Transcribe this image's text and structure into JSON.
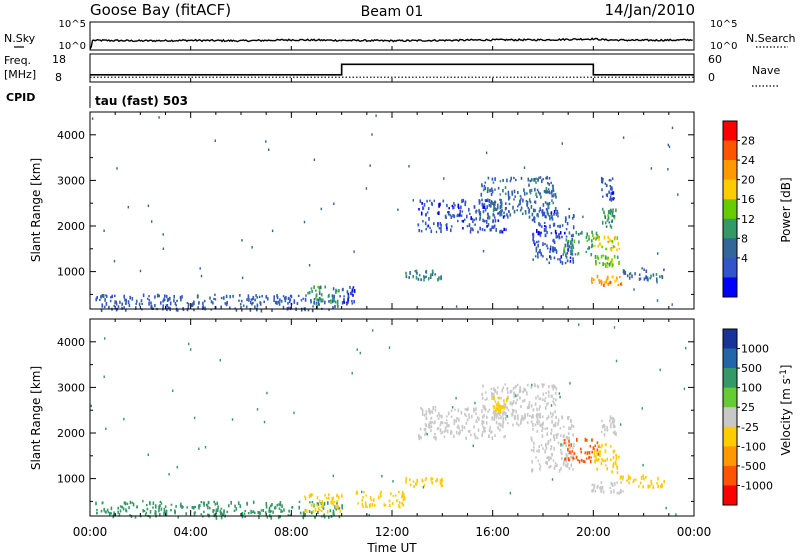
{
  "header": {
    "station": "Goose Bay (fitACF)",
    "beam": "Beam 01",
    "date": "14/Jan/2010"
  },
  "noise_panel": {
    "left_label": "N.Sky",
    "right_label": "N.Search",
    "left_ticks": [
      "10^5",
      "10^0"
    ],
    "right_ticks": [
      "10^5",
      "10^0"
    ]
  },
  "freq_panel": {
    "left_label_1": "Freq.",
    "left_label_2": "[MHz]",
    "left_ticks": [
      "18",
      "8"
    ],
    "right_label": "Nave",
    "right_ticks": [
      "60",
      "0"
    ]
  },
  "cpid_panel": {
    "label": "CPID",
    "mode_text": "tau (fast) 503"
  },
  "x_axis": {
    "label": "Time UT",
    "ticks": [
      "00:00",
      "04:00",
      "08:00",
      "12:00",
      "16:00",
      "20:00",
      "00:00"
    ]
  },
  "power_colorbar": {
    "label": "Power [dB]",
    "ticks": [
      "28",
      "24",
      "20",
      "16",
      "12",
      "8",
      "4"
    ],
    "colors": [
      "#ff0000",
      "#ff5500",
      "#ff9900",
      "#ffcc00",
      "#66cc00",
      "#339966",
      "#336699",
      "#3355cc",
      "#0000ff"
    ]
  },
  "velocity_colorbar": {
    "label": "Velocity [m s^-1]",
    "ticks": [
      "1000",
      "500",
      "100",
      "25",
      "-25",
      "-100",
      "-500",
      "-1000"
    ],
    "colors": [
      "#1a3399",
      "#2266aa",
      "#339966",
      "#66cc33",
      "#c8c8c8",
      "#ffcc00",
      "#ff9900",
      "#ff5500",
      "#ff0000"
    ]
  },
  "chart_data": [
    {
      "type": "line",
      "title": "N.Sky / N.Search noise",
      "x_range_hours": [
        0,
        24
      ],
      "series": [
        {
          "name": "N.Sky",
          "x": [
            0,
            0.05,
            0.1,
            2,
            4,
            6,
            8,
            10,
            12,
            14,
            16,
            18,
            20,
            20.5,
            22,
            24
          ],
          "y_log10": [
            0.0,
            0.5,
            1.8,
            1.7,
            1.8,
            1.7,
            1.9,
            1.8,
            1.7,
            1.8,
            1.9,
            1.9,
            2.1,
            1.9,
            1.8,
            1.9
          ]
        }
      ]
    },
    {
      "type": "line",
      "title": "Frequency and Nave",
      "x_range_hours": [
        0,
        24
      ],
      "ylim_freq_mhz": [
        8,
        18
      ],
      "series": [
        {
          "name": "Freq.",
          "x": [
            0,
            10,
            10,
            20,
            20,
            24
          ],
          "y": [
            10,
            10,
            15,
            15,
            10,
            10
          ]
        },
        {
          "name": "Nave",
          "x": [
            0,
            24
          ],
          "y": [
            7,
            7
          ]
        }
      ]
    },
    {
      "type": "heatmap",
      "title": "Power [dB]",
      "xlabel": "Time UT",
      "ylabel": "Slant Range [km]",
      "xlim_hours": [
        0,
        24
      ],
      "ylim_km": [
        180,
        4500
      ],
      "yticks": [
        1000,
        2000,
        3000,
        4000
      ],
      "regions": [
        {
          "t": [
            0.2,
            10.0
          ],
          "r": [
            180,
            520
          ],
          "value": 8
        },
        {
          "t": [
            8.6,
            10.0
          ],
          "r": [
            300,
            700
          ],
          "value": 14
        },
        {
          "t": [
            10.0,
            10.5
          ],
          "r": [
            300,
            700
          ],
          "value": 6
        },
        {
          "t": [
            12.5,
            14.0
          ],
          "r": [
            850,
            1050
          ],
          "value": 12
        },
        {
          "t": [
            13.0,
            16.5
          ],
          "r": [
            1900,
            2600
          ],
          "value": 6
        },
        {
          "t": [
            15.5,
            18.5
          ],
          "r": [
            2200,
            3100
          ],
          "value": 10
        },
        {
          "t": [
            17.5,
            19.2
          ],
          "r": [
            1200,
            2400
          ],
          "value": 6
        },
        {
          "t": [
            18.8,
            20.2
          ],
          "r": [
            1400,
            1900
          ],
          "value": 14
        },
        {
          "t": [
            20.0,
            21.0
          ],
          "r": [
            1500,
            1800
          ],
          "value": 22
        },
        {
          "t": [
            20.0,
            21.0
          ],
          "r": [
            1150,
            1400
          ],
          "value": 18
        },
        {
          "t": [
            19.9,
            21.2
          ],
          "r": [
            700,
            950
          ],
          "value": 26
        },
        {
          "t": [
            21.0,
            22.8
          ],
          "r": [
            850,
            1100
          ],
          "value": 10
        },
        {
          "t": [
            20.3,
            20.9
          ],
          "r": [
            2000,
            2400
          ],
          "value": 14
        },
        {
          "t": [
            20.3,
            20.8
          ],
          "r": [
            2600,
            3100
          ],
          "value": 6
        }
      ]
    },
    {
      "type": "heatmap",
      "title": "Velocity [m s^-1]",
      "xlabel": "Time UT",
      "ylabel": "Slant Range [km]",
      "xlim_hours": [
        0,
        24
      ],
      "ylim_km": [
        180,
        4500
      ],
      "yticks": [
        1000,
        2000,
        3000,
        4000
      ],
      "regions": [
        {
          "t": [
            0.2,
            10.0
          ],
          "r": [
            180,
            520
          ],
          "value": 60
        },
        {
          "t": [
            8.5,
            10.0
          ],
          "r": [
            300,
            700
          ],
          "value": -40
        },
        {
          "t": [
            10.5,
            12.5
          ],
          "r": [
            400,
            750
          ],
          "value": -80
        },
        {
          "t": [
            12.5,
            14.0
          ],
          "r": [
            850,
            1050
          ],
          "value": -80
        },
        {
          "t": [
            13.0,
            16.5
          ],
          "r": [
            1900,
            2600
          ],
          "value": 0
        },
        {
          "t": [
            15.5,
            18.5
          ],
          "r": [
            2200,
            3100
          ],
          "value": 0
        },
        {
          "t": [
            16.0,
            16.6
          ],
          "r": [
            2500,
            2800
          ],
          "value": -80
        },
        {
          "t": [
            17.5,
            19.2
          ],
          "r": [
            1200,
            2400
          ],
          "value": 0
        },
        {
          "t": [
            18.8,
            20.2
          ],
          "r": [
            1400,
            1900
          ],
          "value": -300
        },
        {
          "t": [
            20.0,
            21.0
          ],
          "r": [
            1150,
            1800
          ],
          "value": -90
        },
        {
          "t": [
            19.9,
            21.2
          ],
          "r": [
            700,
            950
          ],
          "value": 0
        },
        {
          "t": [
            21.0,
            22.8
          ],
          "r": [
            850,
            1100
          ],
          "value": -80
        },
        {
          "t": [
            20.3,
            20.9
          ],
          "r": [
            2000,
            2400
          ],
          "value": 0
        }
      ]
    }
  ]
}
